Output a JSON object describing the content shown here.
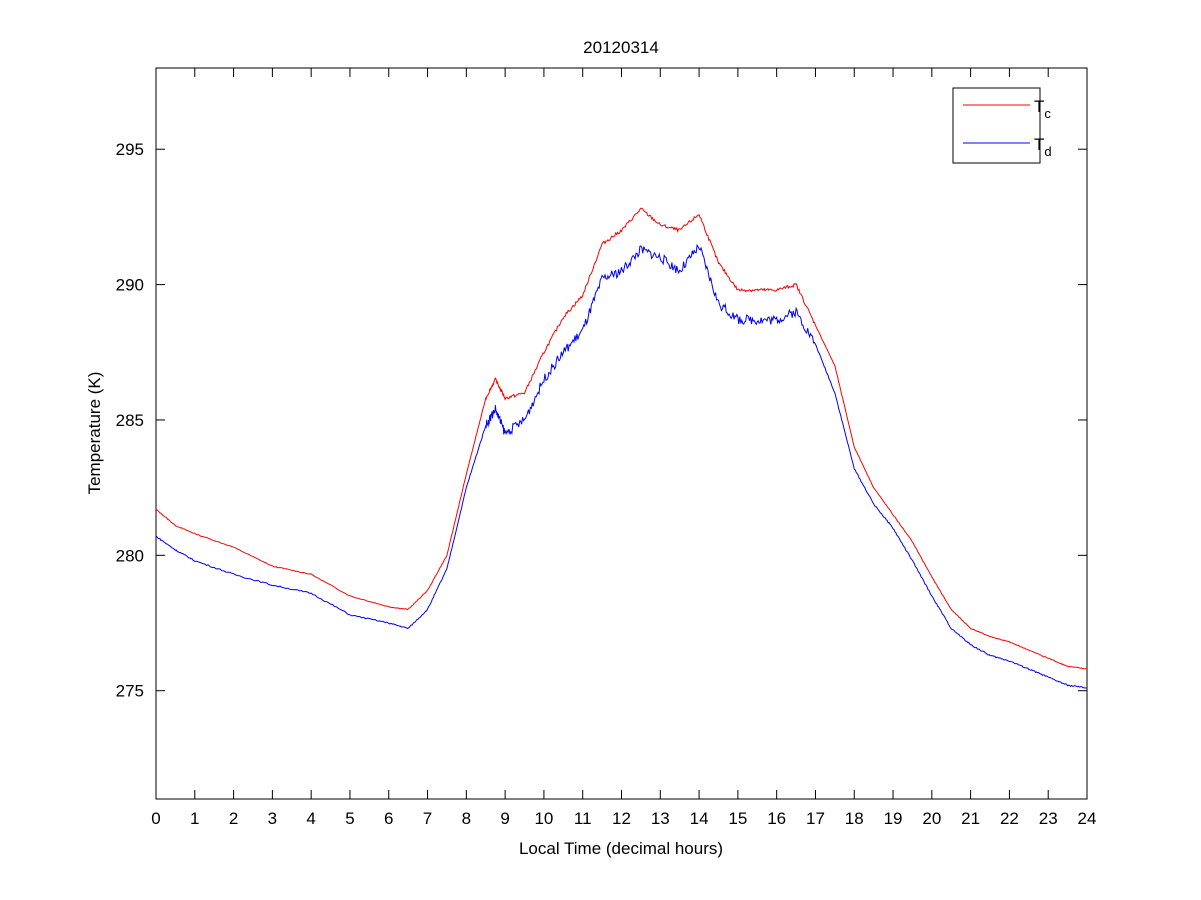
{
  "chart_data": {
    "type": "line",
    "title": "20120314",
    "xlabel": "Local Time (decimal hours)",
    "ylabel": "Temperature (K)",
    "xlim": [
      0,
      24
    ],
    "ylim": [
      271,
      298
    ],
    "xticks": [
      0,
      1,
      2,
      3,
      4,
      5,
      6,
      7,
      8,
      9,
      10,
      11,
      12,
      13,
      14,
      15,
      16,
      17,
      18,
      19,
      20,
      21,
      22,
      23,
      24
    ],
    "yticks": [
      275,
      280,
      285,
      290,
      295
    ],
    "grid": false,
    "legend_position": "top-right",
    "x": [
      0,
      0.5,
      1,
      2,
      3,
      4,
      5,
      6,
      6.5,
      7,
      7.5,
      8,
      8.5,
      8.75,
      9,
      9.5,
      10,
      10.5,
      11,
      11.5,
      12,
      12.5,
      13,
      13.5,
      14,
      14.5,
      15,
      15.5,
      16,
      16.5,
      17,
      17.5,
      18,
      18.5,
      19,
      19.5,
      20,
      20.5,
      21,
      21.5,
      22,
      22.5,
      23,
      23.5,
      24
    ],
    "series": [
      {
        "name": "T",
        "subscript": "c",
        "color": "#ff0000",
        "values": [
          281.7,
          281.1,
          280.8,
          280.3,
          279.6,
          279.3,
          278.5,
          278.1,
          278.0,
          278.7,
          280.0,
          283.0,
          285.8,
          286.5,
          285.8,
          286.0,
          287.5,
          288.8,
          289.6,
          291.5,
          292.0,
          292.8,
          292.2,
          292.0,
          292.6,
          290.8,
          289.8,
          289.8,
          289.8,
          290.0,
          288.5,
          287.0,
          284.0,
          282.5,
          281.5,
          280.5,
          279.2,
          278.0,
          277.3,
          277.0,
          276.8,
          276.5,
          276.2,
          275.9,
          275.8
        ]
      },
      {
        "name": "T",
        "subscript": "d",
        "color": "#0000ff",
        "values": [
          280.7,
          280.2,
          279.8,
          279.3,
          278.9,
          278.6,
          277.8,
          277.5,
          277.3,
          278.0,
          279.5,
          282.5,
          284.8,
          285.4,
          284.5,
          285.0,
          286.5,
          287.5,
          288.3,
          290.2,
          290.5,
          291.3,
          291.0,
          290.5,
          291.4,
          289.3,
          288.7,
          288.7,
          288.7,
          289.0,
          287.8,
          286.0,
          283.2,
          281.9,
          281.0,
          279.8,
          278.5,
          277.3,
          276.7,
          276.3,
          276.1,
          275.8,
          275.5,
          275.2,
          275.1
        ]
      }
    ]
  }
}
